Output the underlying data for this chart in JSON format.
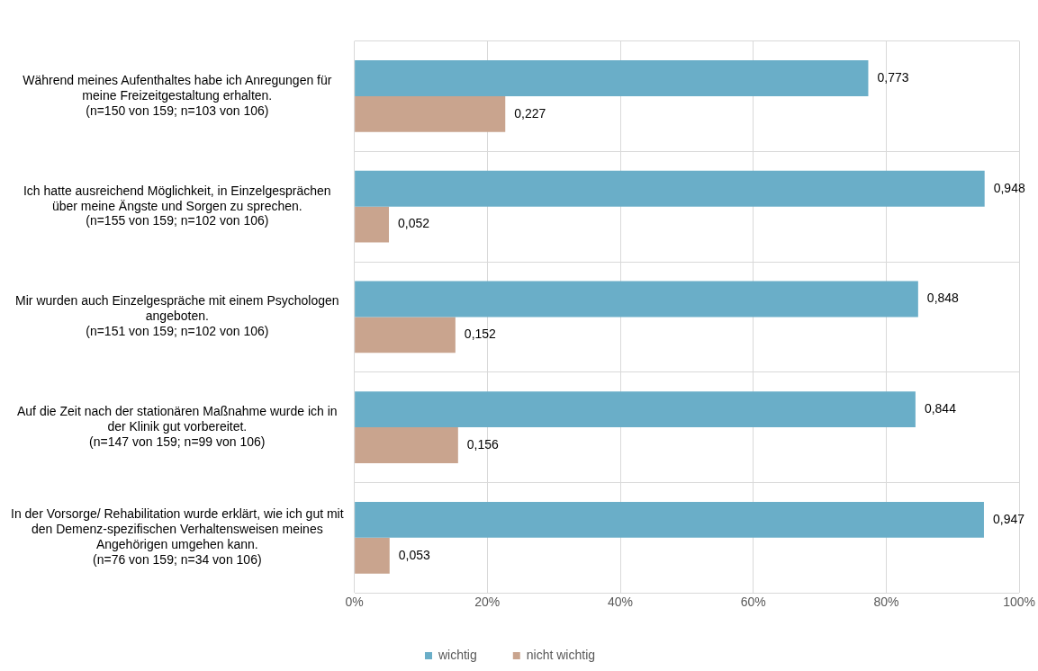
{
  "chart_data": {
    "type": "bar",
    "orientation": "horizontal",
    "categories": [
      "Während meines Aufenthaltes habe ich Anregungen für\nmeine Freizeitgestaltung erhalten.\n(n=150 von 159; n=103 von 106)",
      "Ich hatte ausreichend Möglichkeit, in Einzelgesprächen\nüber meine Ängste und Sorgen zu sprechen.\n(n=155 von 159; n=102 von 106)",
      "Mir wurden auch Einzelgespräche mit einem Psychologen\nangeboten.\n(n=151 von 159; n=102 von 106)",
      "Auf die Zeit nach der stationären Maßnahme wurde ich in\nder Klinik gut vorbereitet.\n(n=147 von 159; n=99 von 106)",
      "In der Vorsorge/ Rehabilitation wurde erklärt, wie ich gut mit\nden Demenz-spezifischen Verhaltensweisen meines\nAngehörigen umgehen kann.\n(n=76 von 159; n=34 von 106)"
    ],
    "series": [
      {
        "name": "wichtig",
        "color": "#6aaec8",
        "values": [
          0.773,
          0.948,
          0.848,
          0.844,
          0.947
        ],
        "value_labels": [
          "0,773",
          "0,948",
          "0,848",
          "0,844",
          "0,947"
        ]
      },
      {
        "name": "nicht wichtig",
        "color": "#c9a48e",
        "values": [
          0.227,
          0.052,
          0.152,
          0.156,
          0.053
        ],
        "value_labels": [
          "0,227",
          "0,052",
          "0,152",
          "0,156",
          "0,053"
        ]
      }
    ],
    "xlim": [
      0,
      1
    ],
    "xticks": [
      {
        "value": 0,
        "label": "0%"
      },
      {
        "value": 0.2,
        "label": "20%"
      },
      {
        "value": 0.4,
        "label": "40%"
      },
      {
        "value": 0.6,
        "label": "60%"
      },
      {
        "value": 0.8,
        "label": "80%"
      },
      {
        "value": 1,
        "label": "100%"
      }
    ],
    "grid": true,
    "legend": "bottom"
  }
}
